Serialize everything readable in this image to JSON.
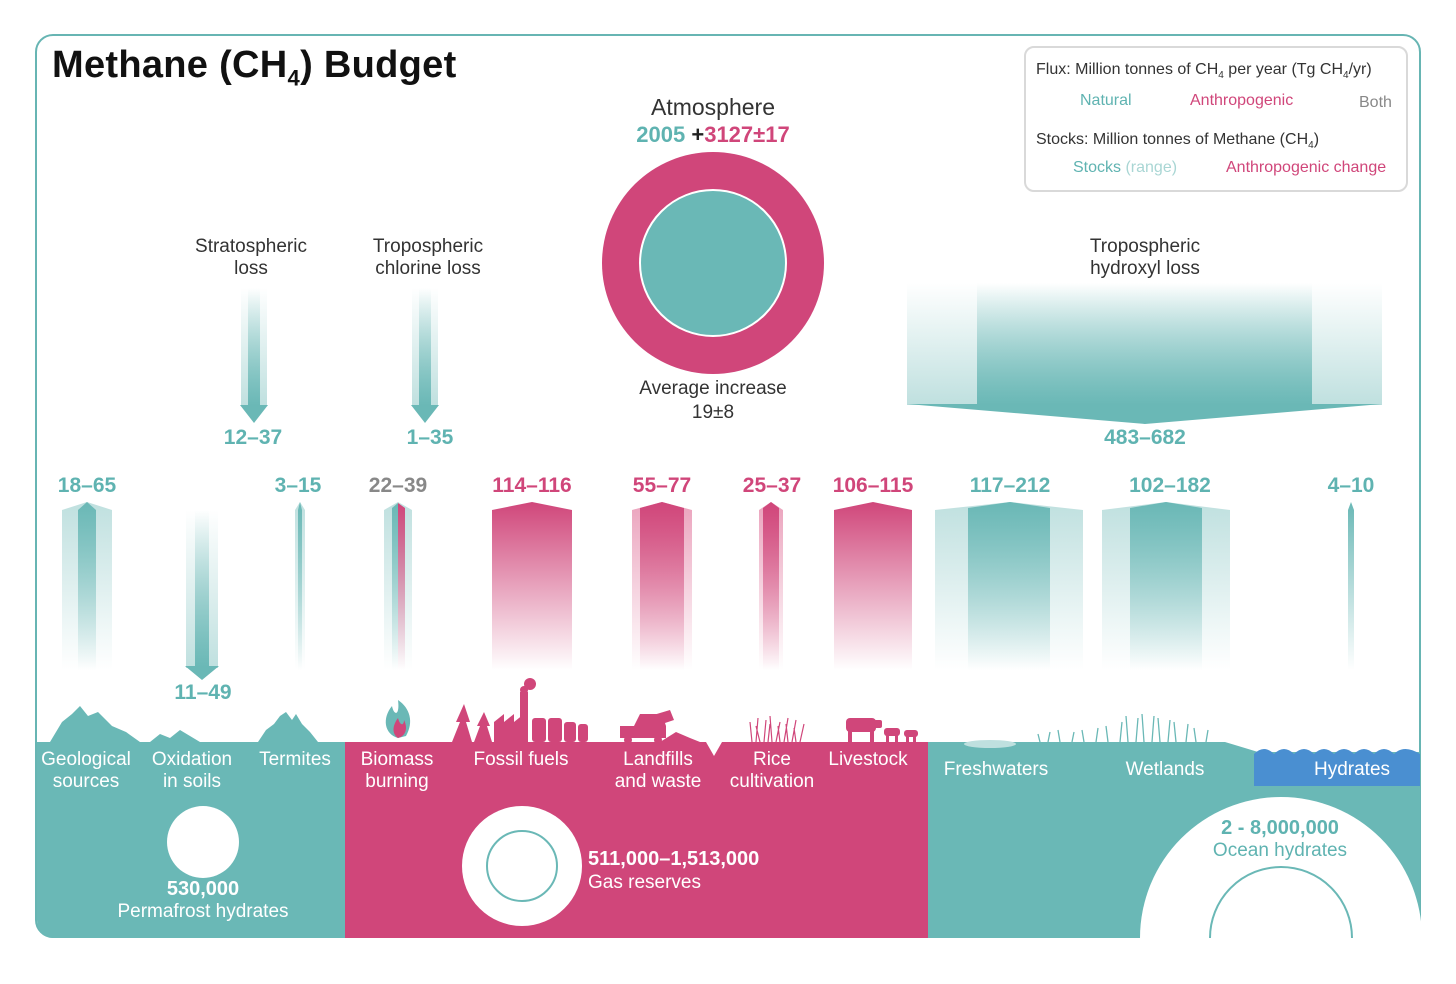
{
  "title": {
    "main": "Methane (CH",
    "sub": "4",
    "end": ") Budget"
  },
  "legend": {
    "flux_prefix": "Flux: Million tonnes of CH",
    "flux_sub": "4",
    "flux_mid": " per year (Tg CH",
    "flux_sub2": "4",
    "flux_end": "/yr)",
    "natural": "Natural",
    "anthropogenic": "Anthropogenic",
    "both": "Both",
    "stocks_prefix": "Stocks: Million tonnes of Methane (CH",
    "stocks_sub": "4",
    "stocks_end": ")",
    "stocks_label": "Stocks",
    "range_label": "(range)",
    "anthro_change": "Anthropogenic change"
  },
  "atmosphere": {
    "title": "Atmosphere",
    "stock": "2005",
    "plus": "+",
    "change": "3127",
    "pm": "±",
    "change_err": "17",
    "increase_label": "Average increase",
    "increase_value": "19±8"
  },
  "sinks": [
    {
      "label_1": "Stratospheric",
      "label_2": "loss",
      "value": "12–37"
    },
    {
      "label_1": "Tropospheric",
      "label_2": "chlorine loss",
      "value": "1–35"
    },
    {
      "label_1": "Tropospheric",
      "label_2": "hydroxyl loss",
      "value": "483–682"
    }
  ],
  "sources": [
    {
      "value": "18–65",
      "label_1": "Geological",
      "label_2": "sources",
      "type": "natural"
    },
    {
      "value": "11–49",
      "label_1": "Oxidation",
      "label_2": "in soils",
      "type": "natural"
    },
    {
      "value": "3–15",
      "label_1": "Termites",
      "label_2": "",
      "type": "natural"
    },
    {
      "value": "22–39",
      "label_1": "Biomass",
      "label_2": "burning",
      "type": "both"
    },
    {
      "value": "114–116",
      "label_1": "Fossil fuels",
      "label_2": "",
      "type": "anthropogenic"
    },
    {
      "value": "55–77",
      "label_1": "Landfills",
      "label_2": "and waste",
      "type": "anthropogenic"
    },
    {
      "value": "25–37",
      "label_1": "Rice",
      "label_2": "cultivation",
      "type": "anthropogenic"
    },
    {
      "value": "106–115",
      "label_1": "Livestock",
      "label_2": "",
      "type": "anthropogenic"
    },
    {
      "value": "117–212",
      "label_1": "Freshwaters",
      "label_2": "",
      "type": "natural"
    },
    {
      "value": "102–182",
      "label_1": "Wetlands",
      "label_2": "",
      "type": "natural"
    },
    {
      "value": "4–10",
      "label_1": "Hydrates",
      "label_2": "",
      "type": "natural"
    }
  ],
  "stocks": {
    "permafrost_value": "530,000",
    "permafrost_label": "Permafrost hydrates",
    "gas_value": "511,000–1,513,000",
    "gas_label": "Gas reserves",
    "ocean_value": "2 - 8,000,000",
    "ocean_label": "Ocean hydrates"
  },
  "colors": {
    "teal": "#6ab8b6",
    "pink": "#d0467a",
    "teal_text": "#5fb3b1",
    "grey_text": "#888888",
    "hydrate_blue": "#4a8fd1"
  }
}
